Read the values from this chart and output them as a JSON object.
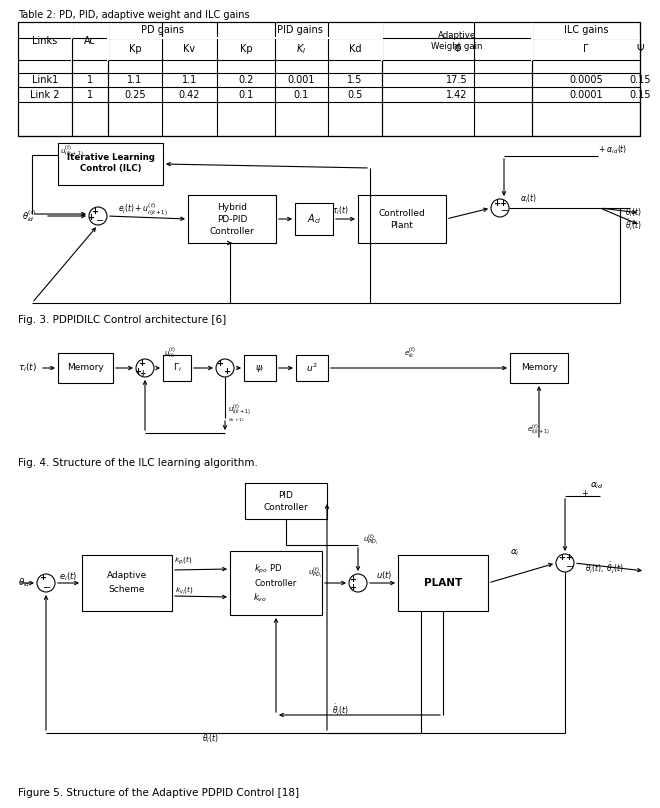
{
  "title": "Figure 5. Structure of the Adaptive PDPID Control [18]",
  "fig3_caption": "Fig. 3. PDPIDILC Control architecture [6]",
  "fig4_caption": "Fig. 4. Structure of the ILC learning algorithm.",
  "table_title": "Table 2: PD, PID, adaptive weight and ILC gains",
  "table_row1": [
    "Link1",
    "1",
    "1.1",
    "1.1",
    "0.2",
    "0.001",
    "1.5",
    "17.5",
    "0.0005",
    "0.15"
  ],
  "table_row2": [
    "Link 2",
    "1",
    "0.25",
    "0.42",
    "0.1",
    "0.1",
    "0.5",
    "1.42",
    "0.0001",
    "0.15"
  ],
  "bg_color": "#ffffff",
  "line_color": "#000000",
  "text_color": "#000000"
}
